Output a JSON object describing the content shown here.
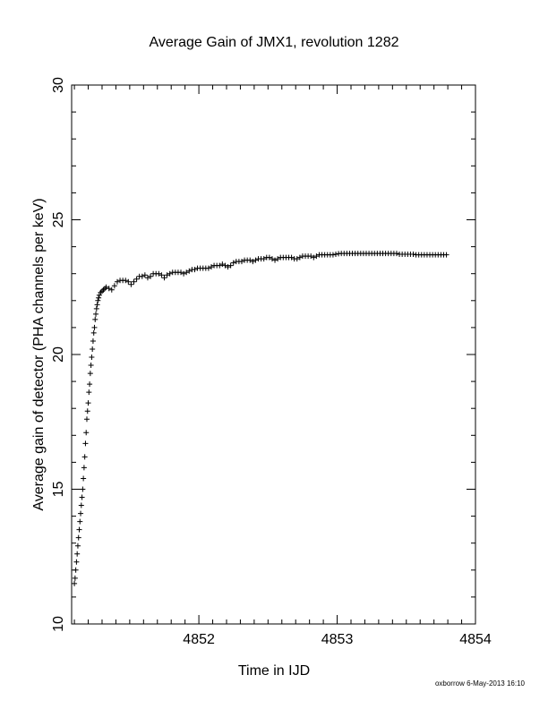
{
  "chart_data": {
    "type": "scatter",
    "title": "Average Gain of JMX1, revolution 1282",
    "xlabel": "Time in IJD",
    "ylabel": "Average gain of detector (PHA channels per keV)",
    "xlim": [
      4851.08,
      4854.0
    ],
    "ylim": [
      10,
      30
    ],
    "xticks": [
      4852,
      4853,
      4854
    ],
    "yticks": [
      10,
      15,
      20,
      25,
      30
    ],
    "marker": "plus",
    "grid": false,
    "series": [
      {
        "points": [
          [
            4851.1,
            11.5
          ],
          [
            4851.105,
            11.7
          ],
          [
            4851.11,
            12.0
          ],
          [
            4851.115,
            12.3
          ],
          [
            4851.12,
            12.6
          ],
          [
            4851.125,
            12.9
          ],
          [
            4851.13,
            13.2
          ],
          [
            4851.135,
            13.5
          ],
          [
            4851.14,
            13.8
          ],
          [
            4851.145,
            14.1
          ],
          [
            4851.15,
            14.4
          ],
          [
            4851.155,
            14.7
          ],
          [
            4851.16,
            15.0
          ],
          [
            4851.165,
            15.4
          ],
          [
            4851.17,
            15.8
          ],
          [
            4851.175,
            16.2
          ],
          [
            4851.18,
            16.7
          ],
          [
            4851.185,
            17.1
          ],
          [
            4851.19,
            17.6
          ],
          [
            4851.195,
            17.9
          ],
          [
            4851.2,
            18.2
          ],
          [
            4851.205,
            18.6
          ],
          [
            4851.21,
            18.9
          ],
          [
            4851.215,
            19.3
          ],
          [
            4851.22,
            19.6
          ],
          [
            4851.225,
            19.9
          ],
          [
            4851.23,
            20.2
          ],
          [
            4851.235,
            20.5
          ],
          [
            4851.24,
            20.8
          ],
          [
            4851.245,
            21.0
          ],
          [
            4851.25,
            21.3
          ],
          [
            4851.255,
            21.5
          ],
          [
            4851.26,
            21.7
          ],
          [
            4851.265,
            21.85
          ],
          [
            4851.27,
            22.0
          ],
          [
            4851.275,
            22.1
          ],
          [
            4851.28,
            22.2
          ],
          [
            4851.29,
            22.3
          ],
          [
            4851.3,
            22.35
          ],
          [
            4851.31,
            22.4
          ],
          [
            4851.32,
            22.45
          ],
          [
            4851.33,
            22.5
          ],
          [
            4851.35,
            22.45
          ],
          [
            4851.37,
            22.4
          ],
          [
            4851.39,
            22.55
          ],
          [
            4851.41,
            22.7
          ],
          [
            4851.43,
            22.75
          ],
          [
            4851.45,
            22.75
          ],
          [
            4851.47,
            22.75
          ],
          [
            4851.49,
            22.7
          ],
          [
            4851.51,
            22.6
          ],
          [
            4851.53,
            22.7
          ],
          [
            4851.55,
            22.8
          ],
          [
            4851.57,
            22.9
          ],
          [
            4851.59,
            22.9
          ],
          [
            4851.61,
            22.95
          ],
          [
            4851.63,
            22.85
          ],
          [
            4851.65,
            22.9
          ],
          [
            4851.67,
            23.0
          ],
          [
            4851.69,
            23.0
          ],
          [
            4851.71,
            23.0
          ],
          [
            4851.73,
            22.95
          ],
          [
            4851.75,
            22.85
          ],
          [
            4851.77,
            22.95
          ],
          [
            4851.79,
            23.0
          ],
          [
            4851.81,
            23.05
          ],
          [
            4851.83,
            23.05
          ],
          [
            4851.85,
            23.05
          ],
          [
            4851.87,
            23.05
          ],
          [
            4851.89,
            23.0
          ],
          [
            4851.91,
            23.05
          ],
          [
            4851.93,
            23.1
          ],
          [
            4851.95,
            23.15
          ],
          [
            4851.97,
            23.15
          ],
          [
            4851.99,
            23.2
          ],
          [
            4852.01,
            23.2
          ],
          [
            4852.03,
            23.2
          ],
          [
            4852.05,
            23.2
          ],
          [
            4852.07,
            23.2
          ],
          [
            4852.09,
            23.25
          ],
          [
            4852.11,
            23.3
          ],
          [
            4852.13,
            23.3
          ],
          [
            4852.15,
            23.3
          ],
          [
            4852.17,
            23.35
          ],
          [
            4852.19,
            23.3
          ],
          [
            4852.21,
            23.25
          ],
          [
            4852.23,
            23.3
          ],
          [
            4852.25,
            23.4
          ],
          [
            4852.27,
            23.45
          ],
          [
            4852.29,
            23.45
          ],
          [
            4852.31,
            23.45
          ],
          [
            4852.33,
            23.5
          ],
          [
            4852.35,
            23.5
          ],
          [
            4852.37,
            23.5
          ],
          [
            4852.39,
            23.45
          ],
          [
            4852.41,
            23.5
          ],
          [
            4852.43,
            23.55
          ],
          [
            4852.45,
            23.55
          ],
          [
            4852.47,
            23.55
          ],
          [
            4852.49,
            23.6
          ],
          [
            4852.51,
            23.6
          ],
          [
            4852.53,
            23.55
          ],
          [
            4852.55,
            23.5
          ],
          [
            4852.57,
            23.55
          ],
          [
            4852.59,
            23.6
          ],
          [
            4852.61,
            23.6
          ],
          [
            4852.63,
            23.6
          ],
          [
            4852.65,
            23.6
          ],
          [
            4852.67,
            23.6
          ],
          [
            4852.69,
            23.55
          ],
          [
            4852.71,
            23.55
          ],
          [
            4852.73,
            23.6
          ],
          [
            4852.75,
            23.65
          ],
          [
            4852.77,
            23.65
          ],
          [
            4852.79,
            23.65
          ],
          [
            4852.81,
            23.65
          ],
          [
            4852.83,
            23.6
          ],
          [
            4852.85,
            23.65
          ],
          [
            4852.87,
            23.7
          ],
          [
            4852.89,
            23.7
          ],
          [
            4852.91,
            23.7
          ],
          [
            4852.93,
            23.7
          ],
          [
            4852.95,
            23.7
          ],
          [
            4852.97,
            23.7
          ],
          [
            4852.99,
            23.72
          ],
          [
            4853.01,
            23.74
          ],
          [
            4853.03,
            23.75
          ],
          [
            4853.05,
            23.75
          ],
          [
            4853.07,
            23.75
          ],
          [
            4853.09,
            23.75
          ],
          [
            4853.11,
            23.75
          ],
          [
            4853.13,
            23.75
          ],
          [
            4853.15,
            23.75
          ],
          [
            4853.17,
            23.75
          ],
          [
            4853.19,
            23.75
          ],
          [
            4853.21,
            23.75
          ],
          [
            4853.23,
            23.75
          ],
          [
            4853.25,
            23.75
          ],
          [
            4853.27,
            23.75
          ],
          [
            4853.29,
            23.75
          ],
          [
            4853.31,
            23.75
          ],
          [
            4853.33,
            23.75
          ],
          [
            4853.35,
            23.75
          ],
          [
            4853.37,
            23.75
          ],
          [
            4853.39,
            23.75
          ],
          [
            4853.41,
            23.75
          ],
          [
            4853.43,
            23.75
          ],
          [
            4853.45,
            23.72
          ],
          [
            4853.47,
            23.72
          ],
          [
            4853.49,
            23.72
          ],
          [
            4853.51,
            23.72
          ],
          [
            4853.53,
            23.72
          ],
          [
            4853.55,
            23.72
          ],
          [
            4853.57,
            23.7
          ],
          [
            4853.59,
            23.7
          ],
          [
            4853.61,
            23.7
          ],
          [
            4853.63,
            23.7
          ],
          [
            4853.65,
            23.7
          ],
          [
            4853.67,
            23.7
          ],
          [
            4853.69,
            23.7
          ],
          [
            4853.71,
            23.7
          ],
          [
            4853.73,
            23.7
          ],
          [
            4853.75,
            23.7
          ],
          [
            4853.77,
            23.7
          ],
          [
            4853.79,
            23.7
          ]
        ]
      }
    ]
  },
  "footer": {
    "credit": "oxborrow  6-May-2013 16:10"
  }
}
